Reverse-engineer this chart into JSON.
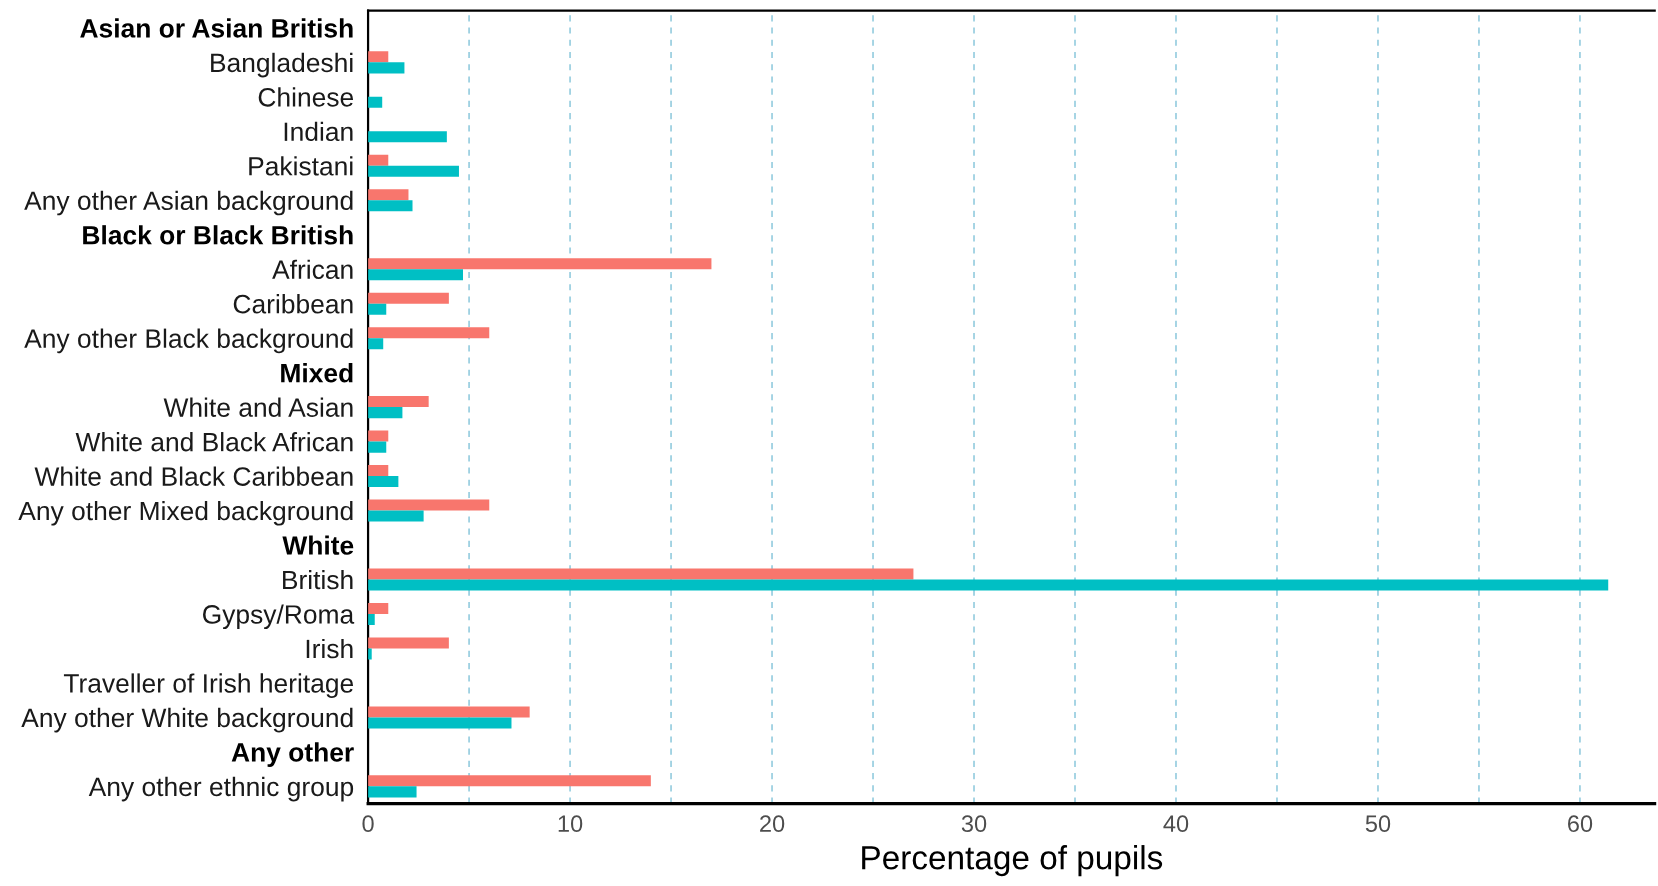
{
  "chart_data": {
    "type": "bar",
    "orientation": "horizontal",
    "xlabel": "Percentage of pupils",
    "categories": [
      "Asian or Asian British",
      "Bangladeshi",
      "Chinese",
      "Indian",
      "Pakistani",
      "Any other Asian background",
      "Black or Black British",
      "African",
      "Caribbean",
      "Any other Black background",
      "Mixed",
      "White and Asian",
      "White and Black African",
      "White and Black Caribbean",
      "Any other Mixed background",
      "White",
      "British",
      "Gypsy/Roma",
      "Irish",
      "Traveller of Irish heritage",
      "Any other White background",
      "Any other",
      "Any other ethnic group"
    ],
    "series": [
      {
        "color": "#f8766d",
        "values": [
          null,
          1,
          0,
          0,
          1,
          2,
          null,
          17,
          4,
          6,
          null,
          3,
          1,
          1,
          6,
          null,
          27,
          1,
          4,
          0,
          8,
          null,
          14
        ]
      },
      {
        "color": "#00bfc4",
        "values": [
          null,
          1.8,
          0.7,
          3.9,
          4.5,
          2.2,
          null,
          4.7,
          0.9,
          0.75,
          null,
          1.7,
          0.9,
          1.5,
          2.75,
          null,
          61.4,
          0.33,
          0.18,
          0,
          7.1,
          null,
          2.4
        ]
      }
    ],
    "xlim": [
      0,
      63.7
    ],
    "xticks": [
      0,
      {
        "value": 5,
        "label": null
      },
      10,
      {
        "value": 15,
        "label": null
      },
      20,
      {
        "value": 25,
        "label": null
      },
      30,
      {
        "value": 35,
        "label": null
      },
      40,
      {
        "value": 45,
        "label": null
      },
      50,
      {
        "value": 55,
        "label": null
      },
      60
    ],
    "grid": "x"
  }
}
